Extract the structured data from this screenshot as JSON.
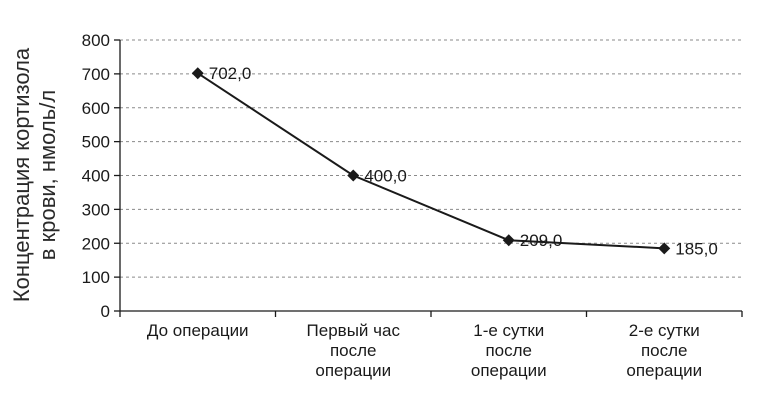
{
  "chart_data": {
    "type": "line",
    "title": "",
    "xlabel": "",
    "ylabel_lines": [
      "Концентрация кортизола",
      "в крови, нмоль/л"
    ],
    "ylim": [
      0,
      800
    ],
    "yticks": [
      "0",
      "100",
      "200",
      "300",
      "400",
      "500",
      "600",
      "700",
      "800"
    ],
    "grid": "dashed horizontal",
    "categories": [
      [
        "До операции"
      ],
      [
        "Первый час",
        "после",
        "операции"
      ],
      [
        "1-е сутки",
        "после",
        "операции"
      ],
      [
        "2-е сутки",
        "после",
        "операции"
      ]
    ],
    "series": [
      {
        "values": [
          702.0,
          400.0,
          209.0,
          185.0
        ],
        "labels": [
          "702,0",
          "400,0",
          "209,0",
          "185,0"
        ],
        "marker": "diamond",
        "color": "#1a1a1a"
      }
    ]
  }
}
